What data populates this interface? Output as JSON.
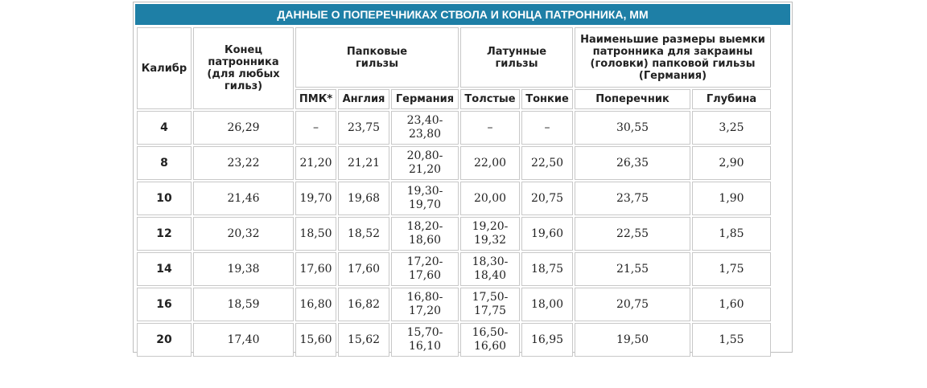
{
  "title": "ДАННЫЕ О ПОПЕРЕЧНИКАХ СТВОЛА И КОНЦА ПАТРОННИКА, ММ",
  "headers": {
    "caliber": "Калибр",
    "chamber_end": "Конец патронника (для любых гильз)",
    "paper_cases": "Папковые гильзы",
    "brass_cases": "Латунные гильзы",
    "rim_recess": "Наименьшие размеры выемки патронника для закраины (головки) папковой гильзы (Германия)",
    "sub": [
      "ПМК*",
      "Англия",
      "Германия",
      "Толстые",
      "Тонкие",
      "Поперечник",
      "Глубина"
    ]
  },
  "rows": [
    {
      "caliber": "4",
      "chamber": "26,29",
      "pmk": "–",
      "england": "23,75",
      "germany": "23,40-\n23,80",
      "thick": "–",
      "thin": "–",
      "diameter": "30,55",
      "depth": "3,25"
    },
    {
      "caliber": "8",
      "chamber": "23,22",
      "pmk": "21,20",
      "england": "21,21",
      "germany": "20,80-\n21,20",
      "thick": "22,00",
      "thin": "22,50",
      "diameter": "26,35",
      "depth": "2,90"
    },
    {
      "caliber": "10",
      "chamber": "21,46",
      "pmk": "19,70",
      "england": "19,68",
      "germany": "19,30-\n19,70",
      "thick": "20,00",
      "thin": "20,75",
      "diameter": "23,75",
      "depth": "1,90"
    },
    {
      "caliber": "12",
      "chamber": "20,32",
      "pmk": "18,50",
      "england": "18,52",
      "germany": "18,20-\n18,60",
      "thick": "19,20-\n19,32",
      "thin": "19,60",
      "diameter": "22,55",
      "depth": "1,85"
    },
    {
      "caliber": "14",
      "chamber": "19,38",
      "pmk": "17,60",
      "england": "17,60",
      "germany": "17,20-\n17,60",
      "thick": "18,30-\n18,40",
      "thin": "18,75",
      "diameter": "21,55",
      "depth": "1,75"
    },
    {
      "caliber": "16",
      "chamber": "18,59",
      "pmk": "16,80",
      "england": "16,82",
      "germany": "16,80-\n17,20",
      "thick": "17,50-\n17,75",
      "thin": "18,00",
      "diameter": "20,75",
      "depth": "1,60"
    },
    {
      "caliber": "20",
      "chamber": "17,40",
      "pmk": "15,60",
      "england": "15,62",
      "germany": "15,70-\n16,10",
      "thick": "16,50-\n16,60",
      "thin": "16,95",
      "diameter": "19,50",
      "depth": "1,55"
    }
  ]
}
